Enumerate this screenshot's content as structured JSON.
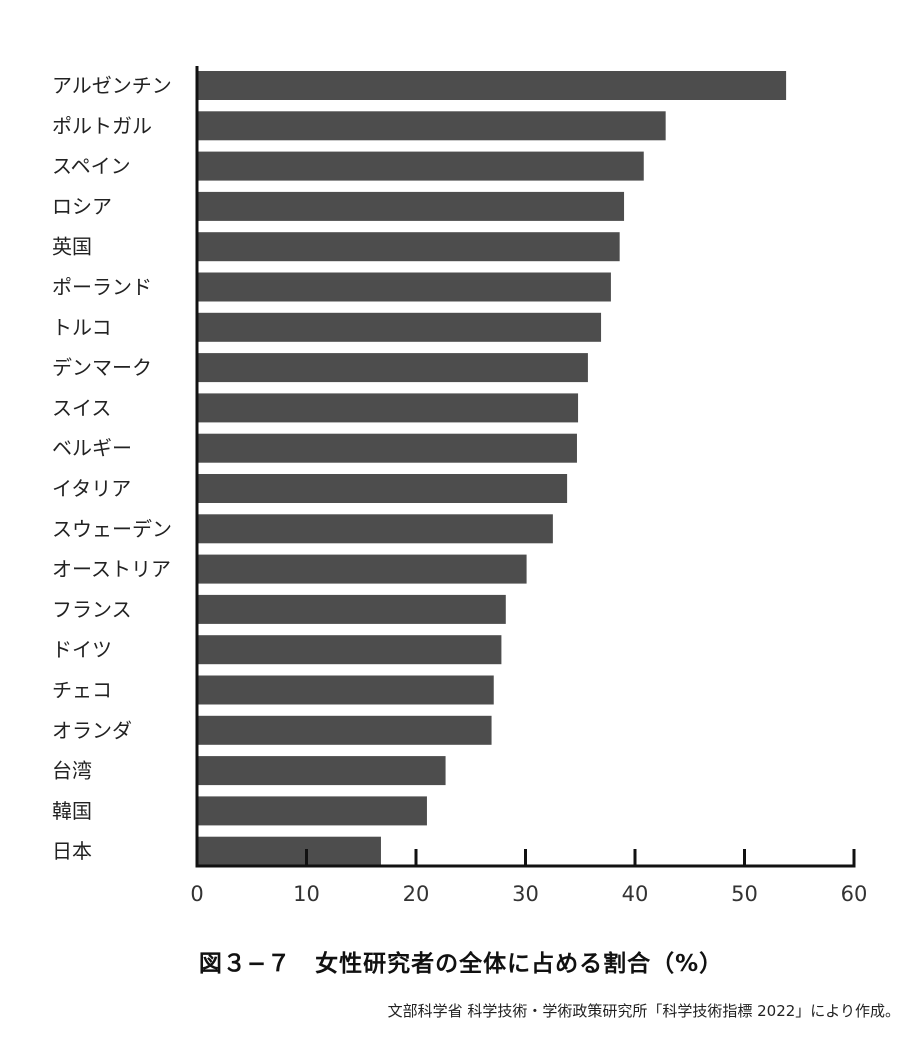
{
  "caption": "図３−７　女性研究者の全体に占める割合（%）",
  "source": "文部科学省 科学技術・学術政策研究所「科学技術指標 2022」により作成。",
  "chart_data": {
    "type": "bar",
    "orientation": "horizontal",
    "categories": [
      "アルゼンチン",
      "ポルトガル",
      "スペイン",
      "ロシア",
      "英国",
      "ポーランド",
      "トルコ",
      "デンマーク",
      "スイス",
      "ベルギー",
      "イタリア",
      "スウェーデン",
      "オーストリア",
      "フランス",
      "ドイツ",
      "チェコ",
      "オランダ",
      "台湾",
      "韓国",
      "日本"
    ],
    "values": [
      53.8,
      42.8,
      40.8,
      39.0,
      38.6,
      37.8,
      36.9,
      35.7,
      34.8,
      34.7,
      33.8,
      32.5,
      30.1,
      28.2,
      27.8,
      27.1,
      26.9,
      22.7,
      21.0,
      16.8
    ],
    "xlim": [
      0,
      60
    ],
    "xticks": [
      0,
      10,
      20,
      30,
      40,
      50,
      60
    ],
    "bar_color": "#4d4d4d",
    "grid": false
  }
}
